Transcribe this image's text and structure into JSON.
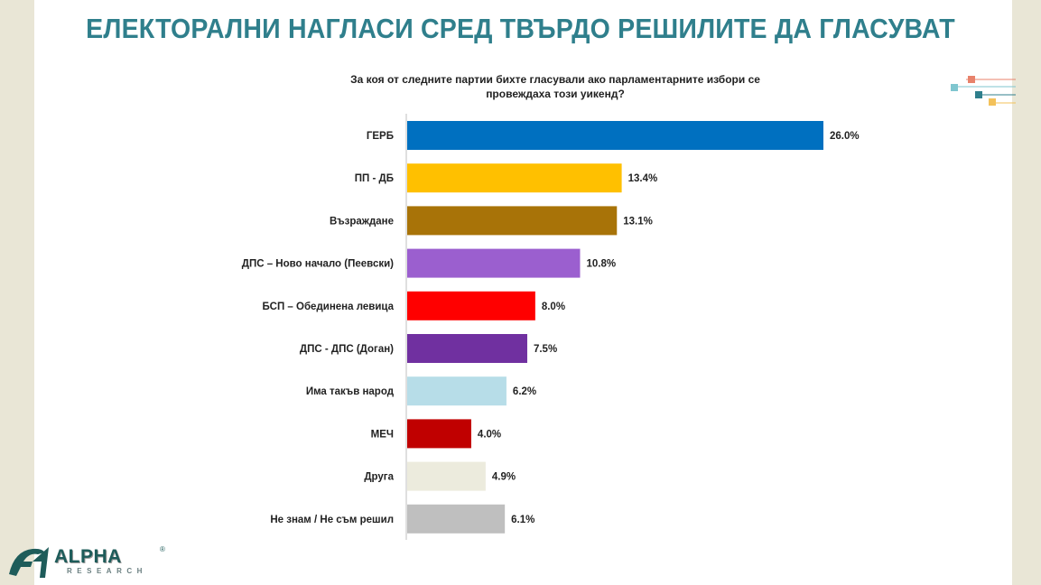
{
  "title": "ЕЛЕКТОРАЛНИ НАГЛАСИ СРЕД ТВЪРДО РЕШИЛИТЕ ДА ГЛАСУВАТ",
  "question_line1": "За коя от следните партии бихте гласували ако парламентарните избори се",
  "question_line2": "провеждаха този уикенд?",
  "logo": {
    "name": "ALPHA",
    "sub": "RESEARCH",
    "reg": "®"
  },
  "chart_data": {
    "type": "bar",
    "orientation": "horizontal",
    "title": "",
    "xlabel": "",
    "ylabel": "",
    "xlim": [
      0,
      26
    ],
    "grid": false,
    "categories": [
      "ГЕРБ",
      "ПП - ДБ",
      "Възраждане",
      "ДПС – Ново начало (Пеевски)",
      "БСП – Обединена левица",
      "ДПС - ДПС (Доган)",
      "Има такъв народ",
      "МЕЧ",
      "Друга",
      "Не знам / Не съм решил"
    ],
    "values": [
      26.0,
      13.4,
      13.1,
      10.8,
      8.0,
      7.5,
      6.2,
      4.0,
      4.9,
      6.1
    ],
    "value_labels": [
      "26.0%",
      "13.4%",
      "13.1%",
      "10.8%",
      "8.0%",
      "7.5%",
      "6.2%",
      "4.0%",
      "4.9%",
      "6.1%"
    ],
    "colors": [
      "#0070c0",
      "#ffc000",
      "#a87308",
      "#9b5fcf",
      "#ff0000",
      "#7030a0",
      "#b7dde8",
      "#c00000",
      "#ecebdd",
      "#bfbfbf"
    ]
  }
}
